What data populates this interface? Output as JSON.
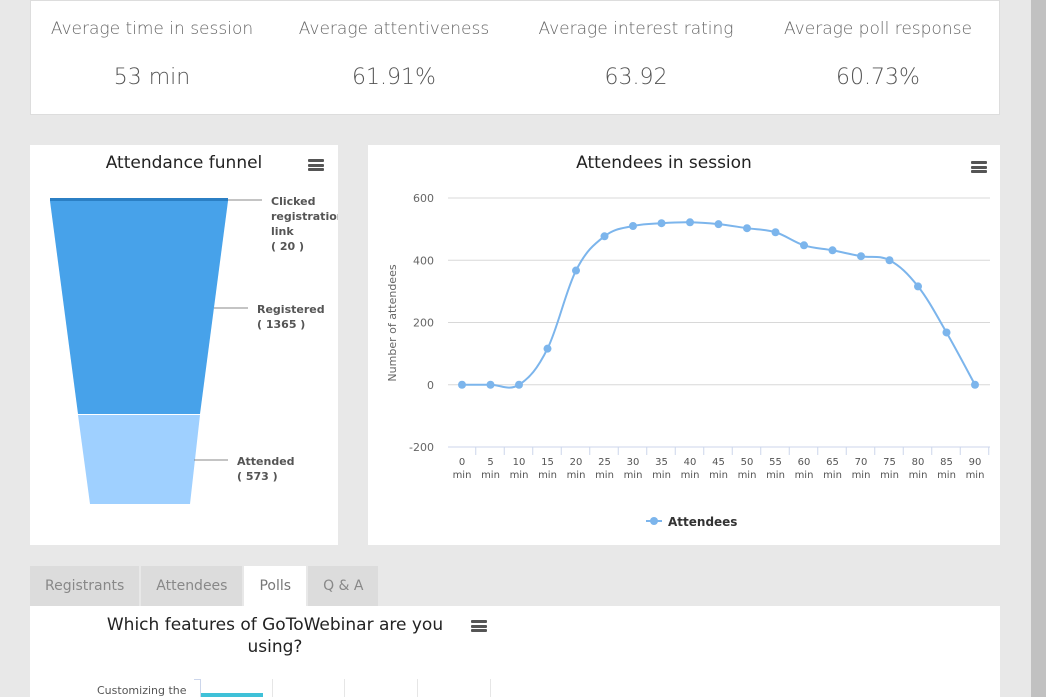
{
  "stats": [
    {
      "label": "Average time in session",
      "value": "53 min"
    },
    {
      "label": "Average attentiveness",
      "value": "61.91%"
    },
    {
      "label": "Average interest rating",
      "value": "63.92"
    },
    {
      "label": "Average poll response",
      "value": "60.73%"
    }
  ],
  "funnel": {
    "title": "Attendance funnel",
    "stages": [
      {
        "name": "Clicked registration link",
        "lines": [
          "Clicked",
          "registration",
          "link"
        ],
        "count": "( 20 )",
        "value": 20
      },
      {
        "name": "Registered",
        "lines": [
          "Registered"
        ],
        "count": "( 1365 )",
        "value": 1365
      },
      {
        "name": "Attended",
        "lines": [
          "Attended"
        ],
        "count": "( 573 )",
        "value": 573
      }
    ],
    "colors": [
      "#2b7fc4",
      "#47a2ea",
      "#9fd0ff"
    ]
  },
  "chart_data": {
    "type": "line",
    "title": "Attendees in session",
    "ylabel": "Number of attendees",
    "xlabel": "",
    "x": [
      "0 min",
      "5 min",
      "10 min",
      "15 min",
      "20 min",
      "25 min",
      "30 min",
      "35 min",
      "40 min",
      "45 min",
      "50 min",
      "55 min",
      "60 min",
      "65 min",
      "70 min",
      "75 min",
      "80 min",
      "85 min",
      "90 min"
    ],
    "series": [
      {
        "name": "Attendees",
        "values": [
          0,
          0,
          0,
          116,
          367,
          477,
          510,
          519,
          522,
          516,
          503,
          490,
          448,
          432,
          413,
          400,
          316,
          168,
          0
        ],
        "color": "#7cb5ec"
      }
    ],
    "ylim": [
      -200,
      600
    ],
    "yticks": [
      -200,
      0,
      200,
      400,
      600
    ],
    "legend": "bottom-center",
    "grid": true
  },
  "tabs": [
    "Registrants",
    "Attendees",
    "Polls",
    "Q & A"
  ],
  "active_tab": "Polls",
  "poll": {
    "title_line1": "Which features of GoToWebinar are you",
    "title_line2": "using?",
    "first_category": "Customizing the"
  }
}
